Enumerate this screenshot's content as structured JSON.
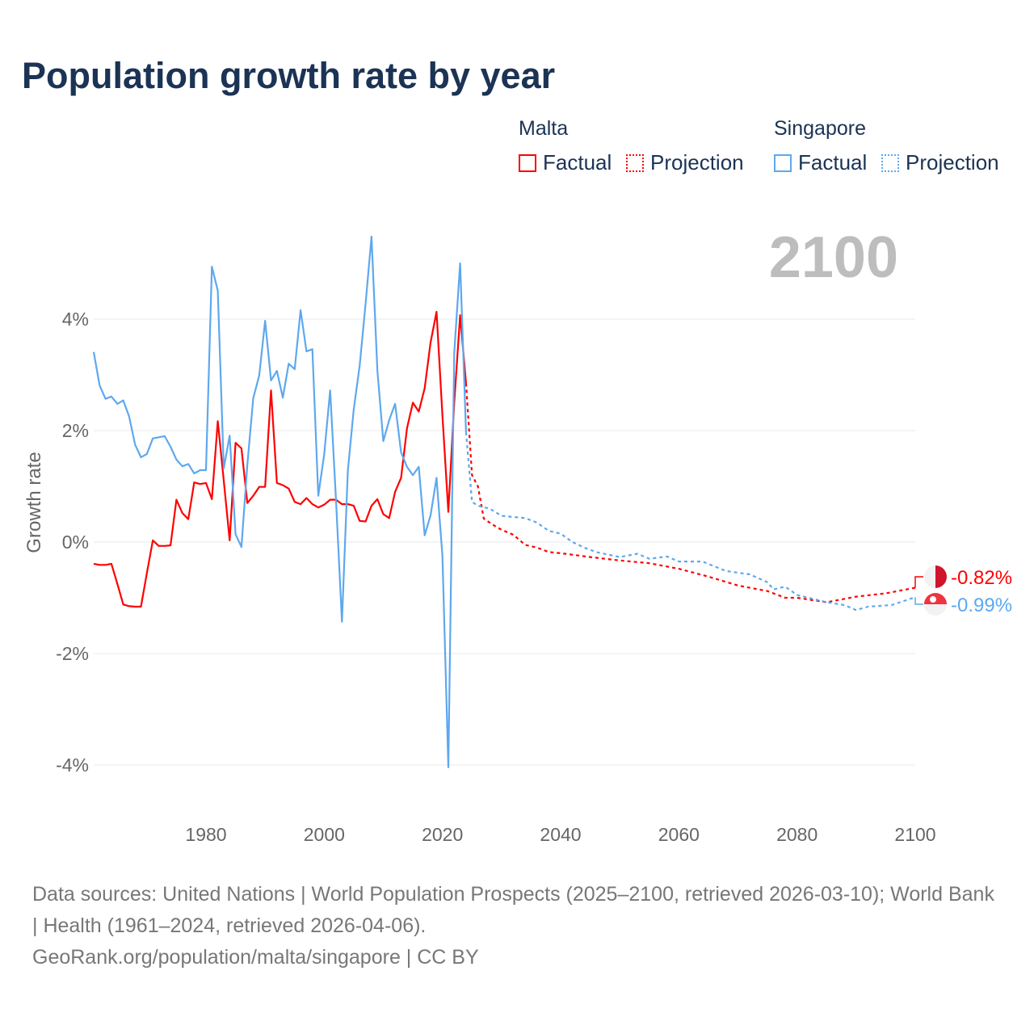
{
  "title": "Population growth rate by year",
  "legend": {
    "groups": [
      {
        "name": "Malta",
        "factual": "Factual",
        "projection": "Projection",
        "color": "#ff0000"
      },
      {
        "name": "Singapore",
        "factual": "Factual",
        "projection": "Projection",
        "color": "#5ea8ee"
      }
    ]
  },
  "year_overlay": "2100",
  "footer": {
    "sources": "Data sources: United Nations | World Population Prospects (2025–2100, retrieved 2026-03-10); World Bank | Health (1961–2024, retrieved 2026-04-06).",
    "credit": "GeoRank.org/population/malta/singapore | CC BY"
  },
  "chart_data": {
    "type": "line",
    "title": "Population growth rate by year",
    "xlabel": "",
    "ylabel": "Growth rate",
    "xlim": [
      1961,
      2100
    ],
    "ylim": [
      -4.8,
      5.6
    ],
    "x_ticks": [
      {
        "v": 1980,
        "label": "1980"
      },
      {
        "v": 2000,
        "label": "2000"
      },
      {
        "v": 2020,
        "label": "2020"
      },
      {
        "v": 2040,
        "label": "2040"
      },
      {
        "v": 2060,
        "label": "2060"
      },
      {
        "v": 2080,
        "label": "2080"
      },
      {
        "v": 2100,
        "label": "2100"
      }
    ],
    "y_ticks": [
      {
        "v": 4,
        "label": "4%"
      },
      {
        "v": 2,
        "label": "2%"
      },
      {
        "v": 0,
        "label": "0%"
      },
      {
        "v": -2,
        "label": "-2%"
      },
      {
        "v": -4,
        "label": "-4%"
      }
    ],
    "grid": true,
    "legend_position": "top-right",
    "end_labels": [
      {
        "series": "Malta",
        "label": "-0.82%",
        "value": -0.82
      },
      {
        "series": "Singapore",
        "label": "-0.99%",
        "value": -0.99
      }
    ],
    "series": [
      {
        "name": "Malta Factual",
        "color": "#ff0000",
        "dashed": false,
        "x": [
          1961,
          1962,
          1963,
          1964,
          1965,
          1966,
          1967,
          1968,
          1969,
          1970,
          1971,
          1972,
          1973,
          1974,
          1975,
          1976,
          1977,
          1978,
          1979,
          1980,
          1981,
          1982,
          1983,
          1984,
          1985,
          1986,
          1987,
          1988,
          1989,
          1990,
          1991,
          1992,
          1993,
          1994,
          1995,
          1996,
          1997,
          1998,
          1999,
          2000,
          2001,
          2002,
          2003,
          2004,
          2005,
          2006,
          2007,
          2008,
          2009,
          2010,
          2011,
          2012,
          2013,
          2014,
          2015,
          2016,
          2017,
          2018,
          2019,
          2020,
          2021,
          2022,
          2023,
          2024
        ],
        "y": [
          -0.39,
          -0.41,
          -0.41,
          -0.39,
          -0.75,
          -1.12,
          -1.15,
          -1.16,
          -1.16,
          -0.56,
          0.03,
          -0.07,
          -0.07,
          -0.06,
          0.76,
          0.52,
          0.41,
          1.07,
          1.04,
          1.06,
          0.77,
          2.17,
          1.1,
          0.03,
          1.78,
          1.68,
          0.7,
          0.83,
          0.99,
          0.99,
          2.72,
          1.06,
          1.02,
          0.96,
          0.72,
          0.68,
          0.79,
          0.68,
          0.62,
          0.67,
          0.76,
          0.76,
          0.68,
          0.68,
          0.65,
          0.38,
          0.37,
          0.65,
          0.77,
          0.5,
          0.43,
          0.9,
          1.15,
          2.04,
          2.5,
          2.34,
          2.76,
          3.58,
          4.13,
          2.27,
          0.54,
          2.5,
          4.07,
          2.85
        ]
      },
      {
        "name": "Malta Projection",
        "color": "#ff0000",
        "dashed": true,
        "x": [
          2024,
          2025,
          2026,
          2027,
          2028,
          2029,
          2030,
          2032,
          2034,
          2036,
          2038,
          2040,
          2045,
          2050,
          2055,
          2060,
          2065,
          2070,
          2075,
          2078,
          2080,
          2085,
          2090,
          2095,
          2100
        ],
        "y": [
          2.85,
          1.2,
          1.0,
          0.42,
          0.35,
          0.28,
          0.22,
          0.13,
          -0.05,
          -0.1,
          -0.18,
          -0.2,
          -0.27,
          -0.33,
          -0.38,
          -0.48,
          -0.62,
          -0.78,
          -0.88,
          -1.0,
          -1.0,
          -1.08,
          -0.98,
          -0.92,
          -0.82
        ]
      },
      {
        "name": "Singapore Factual",
        "color": "#5ea8ee",
        "dashed": false,
        "x": [
          1961,
          1962,
          1963,
          1964,
          1965,
          1966,
          1967,
          1968,
          1969,
          1970,
          1971,
          1972,
          1973,
          1974,
          1975,
          1976,
          1977,
          1978,
          1979,
          1980,
          1981,
          1982,
          1983,
          1984,
          1985,
          1986,
          1987,
          1988,
          1989,
          1990,
          1991,
          1992,
          1993,
          1994,
          1995,
          1996,
          1997,
          1998,
          1999,
          2000,
          2001,
          2002,
          2003,
          2004,
          2005,
          2006,
          2007,
          2008,
          2009,
          2010,
          2011,
          2012,
          2013,
          2014,
          2015,
          2016,
          2017,
          2018,
          2019,
          2020,
          2021,
          2022,
          2023,
          2024
        ],
        "y": [
          3.41,
          2.81,
          2.57,
          2.61,
          2.48,
          2.54,
          2.25,
          1.75,
          1.52,
          1.58,
          1.86,
          1.88,
          1.9,
          1.71,
          1.48,
          1.36,
          1.4,
          1.23,
          1.29,
          1.29,
          4.94,
          4.51,
          1.32,
          1.91,
          0.14,
          -0.09,
          1.39,
          2.58,
          2.99,
          3.97,
          2.9,
          3.07,
          2.59,
          3.2,
          3.1,
          4.16,
          3.42,
          3.46,
          0.83,
          1.57,
          2.72,
          0.74,
          -1.43,
          1.28,
          2.38,
          3.16,
          4.28,
          5.48,
          3.07,
          1.81,
          2.19,
          2.48,
          1.61,
          1.35,
          1.2,
          1.35,
          0.12,
          0.48,
          1.15,
          -0.25,
          -4.04,
          3.39,
          5.0,
          1.97
        ]
      },
      {
        "name": "Singapore Projection",
        "color": "#5ea8ee",
        "dashed": true,
        "x": [
          2024,
          2025,
          2026,
          2028,
          2030,
          2034,
          2036,
          2038,
          2040,
          2042,
          2044,
          2046,
          2050,
          2053,
          2055,
          2058,
          2060,
          2064,
          2068,
          2072,
          2075,
          2076,
          2078,
          2080,
          2085,
          2088,
          2090,
          2092,
          2096,
          2100
        ],
        "y": [
          1.97,
          0.72,
          0.65,
          0.6,
          0.47,
          0.43,
          0.35,
          0.2,
          0.15,
          0.0,
          -0.1,
          -0.18,
          -0.27,
          -0.21,
          -0.3,
          -0.26,
          -0.35,
          -0.35,
          -0.52,
          -0.58,
          -0.72,
          -0.85,
          -0.8,
          -0.95,
          -1.08,
          -1.13,
          -1.22,
          -1.16,
          -1.13,
          -0.99
        ]
      }
    ]
  }
}
